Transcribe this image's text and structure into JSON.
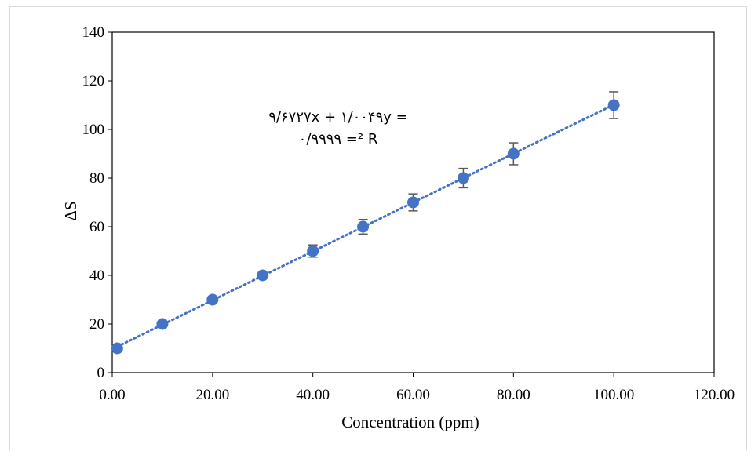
{
  "chart_data": {
    "type": "scatter",
    "xlabel": "Concentration (ppm)",
    "ylabel": "ΔS",
    "xlim": [
      0,
      120
    ],
    "ylim": [
      0,
      140
    ],
    "x_ticks": [
      "0.00",
      "20.00",
      "40.00",
      "60.00",
      "80.00",
      "100.00",
      "120.00"
    ],
    "y_ticks": [
      "0",
      "20",
      "40",
      "60",
      "80",
      "100",
      "120",
      "140"
    ],
    "grid": false,
    "points": [
      {
        "x": 1,
        "y": 10,
        "err": 0.5
      },
      {
        "x": 10,
        "y": 20,
        "err": 0.5
      },
      {
        "x": 20,
        "y": 30,
        "err": 0.7
      },
      {
        "x": 30,
        "y": 40,
        "err": 1.2
      },
      {
        "x": 40,
        "y": 50,
        "err": 2.5
      },
      {
        "x": 50,
        "y": 60,
        "err": 3.0
      },
      {
        "x": 60,
        "y": 70,
        "err": 3.5
      },
      {
        "x": 70,
        "y": 80,
        "err": 4.0
      },
      {
        "x": 80,
        "y": 90,
        "err": 4.5
      },
      {
        "x": 100,
        "y": 110,
        "err": 5.5
      }
    ],
    "trendline": {
      "slope": 1.0049,
      "intercept": 9.6727,
      "style": "dotted"
    },
    "annotation": {
      "equation": "۹/۶۷۲۷x + ۱/۰۰۴۹y =",
      "r2": "۰/۹۹۹۹ =² R"
    },
    "colors": {
      "marker": "#4472c4",
      "trendline": "#4472c4",
      "errorbar": "#595959",
      "axis": "#000000"
    }
  }
}
